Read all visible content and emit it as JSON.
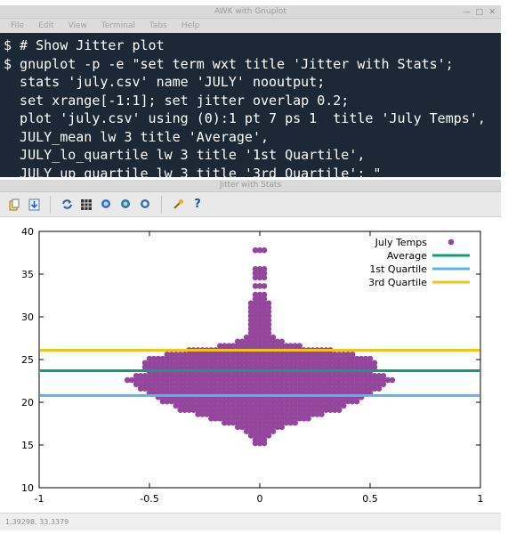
{
  "terminal_window": {
    "title": "AWK with Gnuplot",
    "menu": [
      "File",
      "Edit",
      "View",
      "Terminal",
      "Tabs",
      "Help"
    ],
    "lines": [
      "$ # Show Jitter plot",
      "$ gnuplot -p -e \"set term wxt title 'Jitter with Stats';",
      "  stats 'july.csv' name 'JULY' nooutput;",
      "  set xrange[-1:1]; set jitter overlap 0.2;",
      "  plot 'july.csv' using (0):1 pt 7 ps 1  title 'July Temps',",
      "  JULY_mean lw 3 title 'Average',",
      "  JULY_lo_quartile lw 3 title '1st Quartile',",
      "  JULY_up_quartile lw 3 title '3rd Quartile'; \""
    ],
    "prompt": "$"
  },
  "plot_window": {
    "title": "Jitter with Stats",
    "toolbar_icons": [
      "copy-icon",
      "export-icon",
      "replot-icon",
      "grid-icon",
      "zoom-previous-icon",
      "zoom-next-icon",
      "autoscale-icon",
      "config-icon",
      "help-icon"
    ],
    "status": "1.39298, 33.3379"
  },
  "colors": {
    "points": "#94459c",
    "average": "#0e9e78",
    "lo_quartile": "#5ab4e8",
    "up_quartile": "#f1c31b",
    "terminal_bg": "#1d2837"
  },
  "chart_data": {
    "type": "scatter",
    "x_ticks": [
      "-1",
      "-0.5",
      "0",
      "0.5",
      "1"
    ],
    "y_ticks": [
      "10",
      "15",
      "20",
      "25",
      "30",
      "35",
      "40"
    ],
    "xlim": [
      -1,
      1
    ],
    "ylim": [
      10,
      40
    ],
    "legend_position": "top-right",
    "series": [
      {
        "name": "July Temps",
        "style": "points"
      },
      {
        "name": "Average",
        "style": "hline",
        "y": 23.7
      },
      {
        "name": "1st Quartile",
        "style": "hline",
        "y": 20.8
      },
      {
        "name": "3rd Quartile",
        "style": "hline",
        "y": 26.1
      }
    ],
    "jitter_rows": [
      [
        15.2,
        0.02
      ],
      [
        15.6,
        0.02
      ],
      [
        16.1,
        0.04
      ],
      [
        16.6,
        0.06
      ],
      [
        17.1,
        0.09
      ],
      [
        17.6,
        0.15
      ],
      [
        18.1,
        0.22
      ],
      [
        18.6,
        0.28
      ],
      [
        19.1,
        0.35
      ],
      [
        19.6,
        0.38
      ],
      [
        20.1,
        0.44
      ],
      [
        20.6,
        0.47
      ],
      [
        21.1,
        0.5
      ],
      [
        21.6,
        0.53
      ],
      [
        22.1,
        0.57
      ],
      [
        22.6,
        0.6
      ],
      [
        23.1,
        0.56
      ],
      [
        23.6,
        0.5
      ],
      [
        24.1,
        0.52
      ],
      [
        24.6,
        0.52
      ],
      [
        25.1,
        0.5
      ],
      [
        25.6,
        0.42
      ],
      [
        26.1,
        0.32
      ],
      [
        26.6,
        0.18
      ],
      [
        27.1,
        0.1
      ],
      [
        27.6,
        0.06
      ],
      [
        28.1,
        0.04
      ],
      [
        28.6,
        0.04
      ],
      [
        29.1,
        0.04
      ],
      [
        29.6,
        0.03
      ],
      [
        30.1,
        0.04
      ],
      [
        30.6,
        0.03
      ],
      [
        31.1,
        0.03
      ],
      [
        31.6,
        0.03
      ],
      [
        32.1,
        0.02
      ],
      [
        32.6,
        0.02
      ],
      [
        33.6,
        0.01
      ],
      [
        34.6,
        0.01
      ],
      [
        35.1,
        0.01
      ],
      [
        35.6,
        0.01
      ],
      [
        37.8,
        0.01
      ]
    ]
  }
}
